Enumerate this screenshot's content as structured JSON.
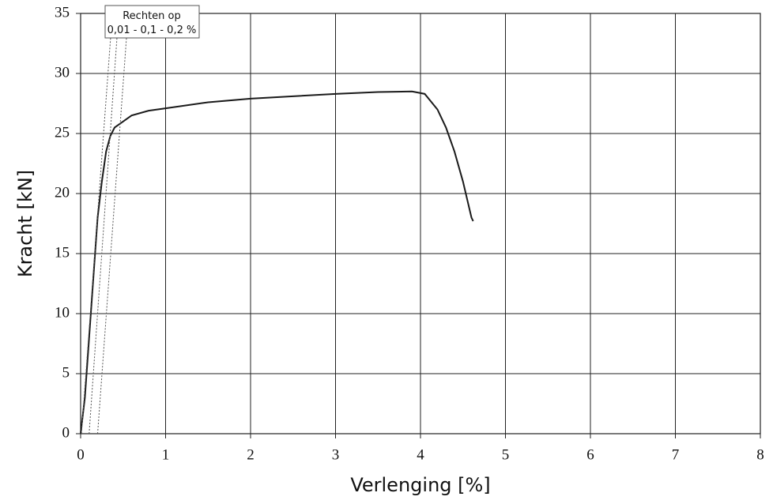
{
  "chart_data": {
    "type": "line",
    "xlabel": "Verlenging [%]",
    "ylabel": "Kracht [kN]",
    "annotation": [
      "Rechten op",
      "0,01 - 0,1 - 0,2 %"
    ],
    "xlim": [
      0,
      8
    ],
    "xticks": [
      0,
      1,
      2,
      3,
      4,
      5,
      6,
      7,
      8
    ],
    "ylim": [
      0,
      35
    ],
    "yticks": [
      0,
      5,
      10,
      15,
      20,
      25,
      30,
      35
    ],
    "grid": true,
    "series": [
      {
        "color": "#1a1a1a",
        "dashed": false,
        "x": [
          0,
          0.05,
          0.1,
          0.15,
          0.2,
          0.25,
          0.3,
          0.35,
          0.4,
          0.5,
          0.6,
          0.8,
          1,
          1.5,
          2,
          2.5,
          3,
          3.5,
          3.9,
          4.05,
          4.2,
          4.3,
          4.4,
          4.5,
          4.6,
          4.62
        ],
        "values": [
          0,
          3,
          8,
          13,
          18,
          21,
          23.5,
          24.8,
          25.5,
          26,
          26.5,
          26.9,
          27.1,
          27.6,
          27.9,
          28.1,
          28.3,
          28.45,
          28.5,
          28.3,
          27,
          25.5,
          23.5,
          21,
          18,
          17.7
        ]
      },
      {
        "color": "#555555",
        "dashed": true,
        "x": [
          0.01,
          0.353
        ],
        "values": [
          0,
          33
        ]
      },
      {
        "color": "#555555",
        "dashed": true,
        "x": [
          0.1,
          0.428
        ],
        "values": [
          0,
          33
        ]
      },
      {
        "color": "#555555",
        "dashed": true,
        "x": [
          0.2,
          0.54
        ],
        "values": [
          0,
          33
        ]
      }
    ]
  }
}
